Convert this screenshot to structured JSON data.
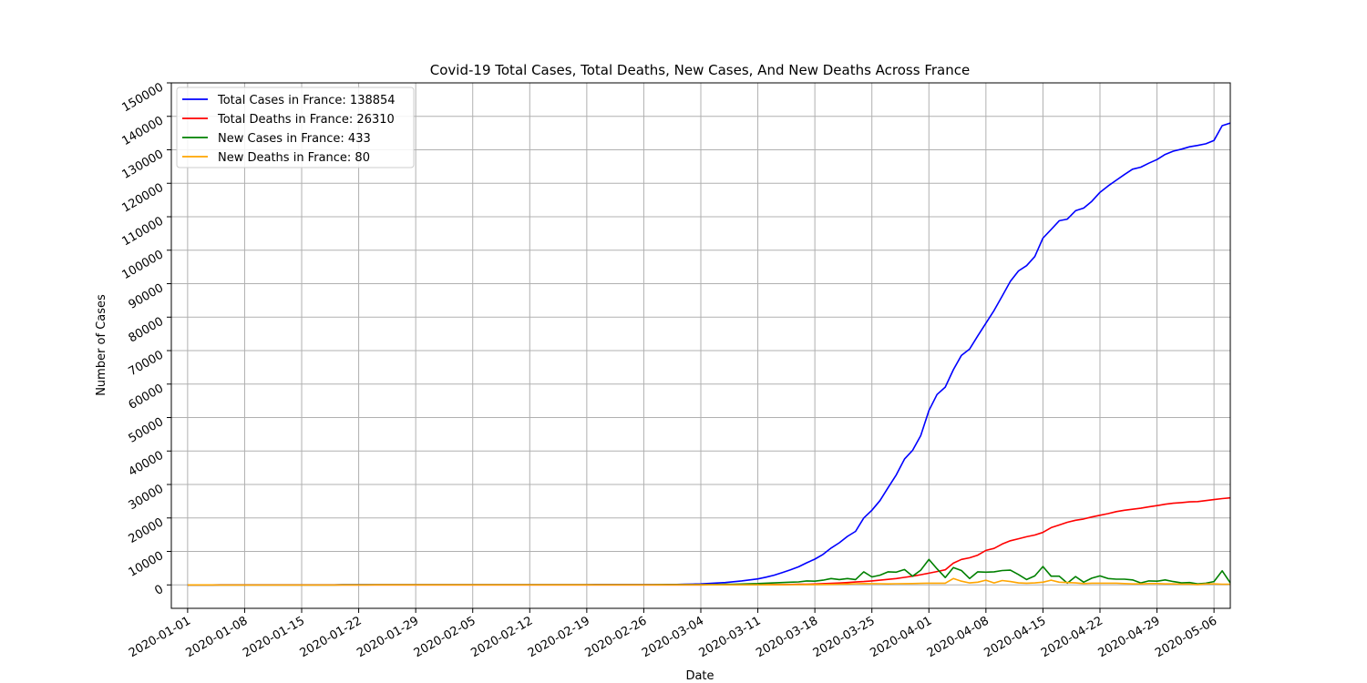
{
  "chart_data": {
    "type": "line",
    "title": "Covid-19 Total Cases, Total Deaths, New Cases, And New Deaths Across France",
    "xlabel": "Date",
    "ylabel": "Number of Cases",
    "xlim": [
      "2019-12-30",
      "2020-05-08"
    ],
    "ylim": [
      -7000,
      150000
    ],
    "grid": true,
    "legend_position": "upper-left",
    "x_ticks": [
      "2020-01-01",
      "2020-01-08",
      "2020-01-15",
      "2020-01-22",
      "2020-01-29",
      "2020-02-05",
      "2020-02-12",
      "2020-02-19",
      "2020-02-26",
      "2020-03-04",
      "2020-03-11",
      "2020-03-18",
      "2020-03-25",
      "2020-04-01",
      "2020-04-08",
      "2020-04-15",
      "2020-04-22",
      "2020-04-29",
      "2020-05-06"
    ],
    "y_ticks": [
      0,
      10000,
      20000,
      30000,
      40000,
      50000,
      60000,
      70000,
      80000,
      90000,
      100000,
      110000,
      120000,
      130000,
      140000,
      150000
    ],
    "series": [
      {
        "name": "Total Cases in France: 138854",
        "color": "#0000ff",
        "points": [
          [
            "2020-01-01",
            0
          ],
          [
            "2020-02-26",
            100
          ],
          [
            "2020-03-01",
            130
          ],
          [
            "2020-03-04",
            300
          ],
          [
            "2020-03-07",
            700
          ],
          [
            "2020-03-09",
            1200
          ],
          [
            "2020-03-11",
            1800
          ],
          [
            "2020-03-12",
            2300
          ],
          [
            "2020-03-13",
            2900
          ],
          [
            "2020-03-14",
            3700
          ],
          [
            "2020-03-15",
            4500
          ],
          [
            "2020-03-16",
            5400
          ],
          [
            "2020-03-17",
            6600
          ],
          [
            "2020-03-18",
            7700
          ],
          [
            "2020-03-19",
            9100
          ],
          [
            "2020-03-20",
            11000
          ],
          [
            "2020-03-21",
            12600
          ],
          [
            "2020-03-22",
            14500
          ],
          [
            "2020-03-23",
            16000
          ],
          [
            "2020-03-24",
            20000
          ],
          [
            "2020-03-25",
            22300
          ],
          [
            "2020-03-26",
            25200
          ],
          [
            "2020-03-27",
            29100
          ],
          [
            "2020-03-28",
            32900
          ],
          [
            "2020-03-29",
            37600
          ],
          [
            "2020-03-30",
            40200
          ],
          [
            "2020-03-31",
            44600
          ],
          [
            "2020-04-01",
            52100
          ],
          [
            "2020-04-02",
            56900
          ],
          [
            "2020-04-03",
            59100
          ],
          [
            "2020-04-04",
            64300
          ],
          [
            "2020-04-05",
            68600
          ],
          [
            "2020-04-06",
            70500
          ],
          [
            "2020-04-07",
            74400
          ],
          [
            "2020-04-08",
            78200
          ],
          [
            "2020-04-09",
            82000
          ],
          [
            "2020-04-10",
            86300
          ],
          [
            "2020-04-11",
            90700
          ],
          [
            "2020-04-12",
            93800
          ],
          [
            "2020-04-13",
            95400
          ],
          [
            "2020-04-14",
            98100
          ],
          [
            "2020-04-15",
            103600
          ],
          [
            "2020-04-16",
            106200
          ],
          [
            "2020-04-17",
            108800
          ],
          [
            "2020-04-18",
            109300
          ],
          [
            "2020-04-19",
            111800
          ],
          [
            "2020-04-20",
            112600
          ],
          [
            "2020-04-21",
            114600
          ],
          [
            "2020-04-22",
            117300
          ],
          [
            "2020-04-23",
            119200
          ],
          [
            "2020-04-24",
            120900
          ],
          [
            "2020-04-25",
            122600
          ],
          [
            "2020-04-26",
            124200
          ],
          [
            "2020-04-27",
            124800
          ],
          [
            "2020-04-28",
            126000
          ],
          [
            "2020-04-29",
            127100
          ],
          [
            "2020-04-30",
            128600
          ],
          [
            "2020-05-01",
            129600
          ],
          [
            "2020-05-02",
            130200
          ],
          [
            "2020-05-03",
            130900
          ],
          [
            "2020-05-04",
            131300
          ],
          [
            "2020-05-05",
            131800
          ],
          [
            "2020-05-06",
            132800
          ],
          [
            "2020-05-07",
            137200
          ],
          [
            "2020-05-08",
            138000
          ],
          [
            "2020-05-09",
            138600
          ],
          [
            "2020-05-10",
            138854
          ]
        ]
      },
      {
        "name": "Total Deaths in France: 26310",
        "color": "#ff0000",
        "points": [
          [
            "2020-01-01",
            0
          ],
          [
            "2020-03-04",
            5
          ],
          [
            "2020-03-11",
            50
          ],
          [
            "2020-03-15",
            130
          ],
          [
            "2020-03-18",
            270
          ],
          [
            "2020-03-21",
            560
          ],
          [
            "2020-03-24",
            1000
          ],
          [
            "2020-03-26",
            1400
          ],
          [
            "2020-03-28",
            1900
          ],
          [
            "2020-03-30",
            2600
          ],
          [
            "2020-04-01",
            3500
          ],
          [
            "2020-04-02",
            4000
          ],
          [
            "2020-04-03",
            4500
          ],
          [
            "2020-04-04",
            6500
          ],
          [
            "2020-04-05",
            7600
          ],
          [
            "2020-04-06",
            8100
          ],
          [
            "2020-04-07",
            8900
          ],
          [
            "2020-04-08",
            10300
          ],
          [
            "2020-04-09",
            10900
          ],
          [
            "2020-04-10",
            12200
          ],
          [
            "2020-04-11",
            13200
          ],
          [
            "2020-04-12",
            13800
          ],
          [
            "2020-04-13",
            14400
          ],
          [
            "2020-04-14",
            14900
          ],
          [
            "2020-04-15",
            15700
          ],
          [
            "2020-04-16",
            17100
          ],
          [
            "2020-04-17",
            17900
          ],
          [
            "2020-04-18",
            18700
          ],
          [
            "2020-04-19",
            19300
          ],
          [
            "2020-04-20",
            19700
          ],
          [
            "2020-04-21",
            20300
          ],
          [
            "2020-04-22",
            20800
          ],
          [
            "2020-04-23",
            21300
          ],
          [
            "2020-04-24",
            21900
          ],
          [
            "2020-04-25",
            22300
          ],
          [
            "2020-04-26",
            22600
          ],
          [
            "2020-04-27",
            22900
          ],
          [
            "2020-04-28",
            23300
          ],
          [
            "2020-04-29",
            23700
          ],
          [
            "2020-04-30",
            24100
          ],
          [
            "2020-05-01",
            24400
          ],
          [
            "2020-05-02",
            24600
          ],
          [
            "2020-05-03",
            24800
          ],
          [
            "2020-05-04",
            24900
          ],
          [
            "2020-05-05",
            25200
          ],
          [
            "2020-05-06",
            25500
          ],
          [
            "2020-05-07",
            25800
          ],
          [
            "2020-05-08",
            26000
          ],
          [
            "2020-05-09",
            26200
          ],
          [
            "2020-05-10",
            26310
          ]
        ]
      },
      {
        "name": "New Cases in France: 433",
        "color": "#008000",
        "points": [
          [
            "2020-01-01",
            0
          ],
          [
            "2020-02-26",
            20
          ],
          [
            "2020-03-04",
            80
          ],
          [
            "2020-03-08",
            200
          ],
          [
            "2020-03-11",
            400
          ],
          [
            "2020-03-13",
            600
          ],
          [
            "2020-03-15",
            800
          ],
          [
            "2020-03-16",
            900
          ],
          [
            "2020-03-17",
            1200
          ],
          [
            "2020-03-18",
            1100
          ],
          [
            "2020-03-19",
            1400
          ],
          [
            "2020-03-20",
            1900
          ],
          [
            "2020-03-21",
            1600
          ],
          [
            "2020-03-22",
            1900
          ],
          [
            "2020-03-23",
            1600
          ],
          [
            "2020-03-24",
            3900
          ],
          [
            "2020-03-25",
            2400
          ],
          [
            "2020-03-26",
            2900
          ],
          [
            "2020-03-27",
            3900
          ],
          [
            "2020-03-28",
            3800
          ],
          [
            "2020-03-29",
            4600
          ],
          [
            "2020-03-30",
            2600
          ],
          [
            "2020-03-31",
            4400
          ],
          [
            "2020-04-01",
            7600
          ],
          [
            "2020-04-02",
            4800
          ],
          [
            "2020-04-03",
            2200
          ],
          [
            "2020-04-04",
            5200
          ],
          [
            "2020-04-05",
            4300
          ],
          [
            "2020-04-06",
            1900
          ],
          [
            "2020-04-07",
            3900
          ],
          [
            "2020-04-08",
            3800
          ],
          [
            "2020-04-09",
            3900
          ],
          [
            "2020-04-10",
            4300
          ],
          [
            "2020-04-11",
            4400
          ],
          [
            "2020-04-12",
            3100
          ],
          [
            "2020-04-13",
            1600
          ],
          [
            "2020-04-14",
            2700
          ],
          [
            "2020-04-15",
            5500
          ],
          [
            "2020-04-16",
            2600
          ],
          [
            "2020-04-17",
            2600
          ],
          [
            "2020-04-18",
            500
          ],
          [
            "2020-04-19",
            2500
          ],
          [
            "2020-04-20",
            800
          ],
          [
            "2020-04-21",
            2000
          ],
          [
            "2020-04-22",
            2700
          ],
          [
            "2020-04-23",
            1900
          ],
          [
            "2020-04-24",
            1700
          ],
          [
            "2020-04-25",
            1700
          ],
          [
            "2020-04-26",
            1500
          ],
          [
            "2020-04-27",
            600
          ],
          [
            "2020-04-28",
            1200
          ],
          [
            "2020-04-29",
            1100
          ],
          [
            "2020-04-30",
            1500
          ],
          [
            "2020-05-01",
            1000
          ],
          [
            "2020-05-02",
            600
          ],
          [
            "2020-05-03",
            700
          ],
          [
            "2020-05-04",
            300
          ],
          [
            "2020-05-05",
            500
          ],
          [
            "2020-05-06",
            1000
          ],
          [
            "2020-05-07",
            4200
          ],
          [
            "2020-05-08",
            600
          ],
          [
            "2020-05-09",
            600
          ],
          [
            "2020-05-10",
            433
          ]
        ]
      },
      {
        "name": "New Deaths in France: 80",
        "color": "#ffa500",
        "points": [
          [
            "2020-01-01",
            0
          ],
          [
            "2020-03-11",
            20
          ],
          [
            "2020-03-18",
            100
          ],
          [
            "2020-03-21",
            200
          ],
          [
            "2020-03-24",
            400
          ],
          [
            "2020-03-27",
            300
          ],
          [
            "2020-03-30",
            400
          ],
          [
            "2020-04-01",
            500
          ],
          [
            "2020-04-03",
            500
          ],
          [
            "2020-04-04",
            1900
          ],
          [
            "2020-04-05",
            1100
          ],
          [
            "2020-04-06",
            600
          ],
          [
            "2020-04-07",
            800
          ],
          [
            "2020-04-08",
            1400
          ],
          [
            "2020-04-09",
            600
          ],
          [
            "2020-04-10",
            1300
          ],
          [
            "2020-04-11",
            1000
          ],
          [
            "2020-04-12",
            600
          ],
          [
            "2020-04-13",
            500
          ],
          [
            "2020-04-14",
            600
          ],
          [
            "2020-04-15",
            800
          ],
          [
            "2020-04-16",
            1400
          ],
          [
            "2020-04-17",
            800
          ],
          [
            "2020-04-18",
            700
          ],
          [
            "2020-04-19",
            600
          ],
          [
            "2020-04-20",
            400
          ],
          [
            "2020-04-21",
            500
          ],
          [
            "2020-04-22",
            500
          ],
          [
            "2020-04-23",
            500
          ],
          [
            "2020-04-24",
            500
          ],
          [
            "2020-04-25",
            400
          ],
          [
            "2020-04-26",
            300
          ],
          [
            "2020-04-27",
            300
          ],
          [
            "2020-04-28",
            400
          ],
          [
            "2020-04-29",
            400
          ],
          [
            "2020-04-30",
            300
          ],
          [
            "2020-05-01",
            300
          ],
          [
            "2020-05-02",
            200
          ],
          [
            "2020-05-03",
            200
          ],
          [
            "2020-05-04",
            100
          ],
          [
            "2020-05-05",
            300
          ],
          [
            "2020-05-06",
            300
          ],
          [
            "2020-05-07",
            200
          ],
          [
            "2020-05-08",
            200
          ],
          [
            "2020-05-09",
            100
          ],
          [
            "2020-05-10",
            80
          ]
        ]
      }
    ]
  }
}
